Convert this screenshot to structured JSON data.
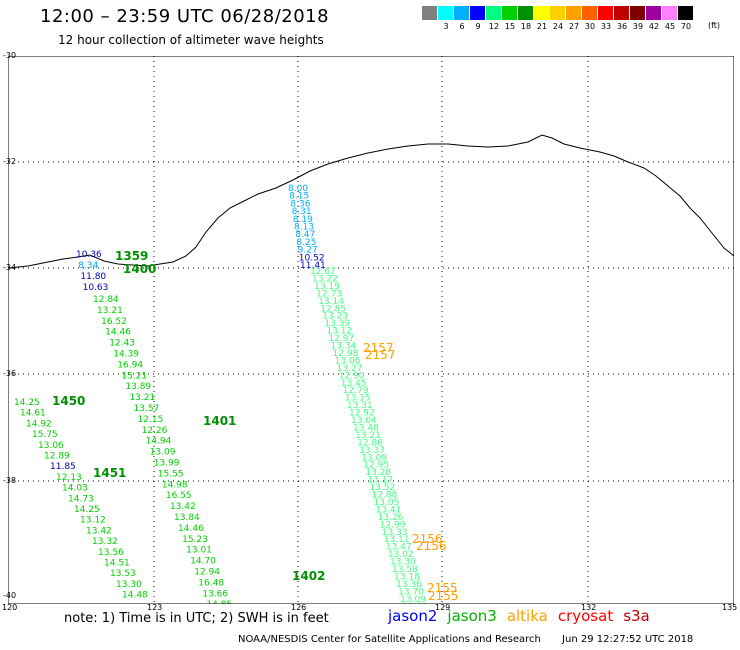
{
  "header": {
    "title": "12:00 – 23:59 UTC 06/28/2018",
    "subtitle": "12 hour collection of altimeter wave heights"
  },
  "legend": {
    "unit": "(ft)",
    "bins": [
      {
        "label": "",
        "color": "#808080"
      },
      {
        "label": "3",
        "color": "#00ffff"
      },
      {
        "label": "6",
        "color": "#00b0ff"
      },
      {
        "label": "9",
        "color": "#0000ff"
      },
      {
        "label": "12",
        "color": "#00ff80"
      },
      {
        "label": "15",
        "color": "#00d000"
      },
      {
        "label": "18",
        "color": "#009000"
      },
      {
        "label": "21",
        "color": "#ffff00"
      },
      {
        "label": "24",
        "color": "#ffd000"
      },
      {
        "label": "27",
        "color": "#ffa000"
      },
      {
        "label": "30",
        "color": "#ff6000"
      },
      {
        "label": "33",
        "color": "#ff0000"
      },
      {
        "label": "36",
        "color": "#c00000"
      },
      {
        "label": "39",
        "color": "#800000"
      },
      {
        "label": "42",
        "color": "#a000a0"
      },
      {
        "label": "45",
        "color": "#ff80ff"
      },
      {
        "label": "70",
        "color": "#000000"
      }
    ]
  },
  "map": {
    "lat_labels": [
      "-30",
      "-32",
      "-34",
      "-36",
      "-38",
      "-40"
    ],
    "lon_labels": [
      "120",
      "123",
      "126",
      "129",
      "132",
      "135"
    ]
  },
  "tracks": [
    {
      "id": "t1359",
      "mission": "jason2",
      "time": "1359",
      "time_color": "#009000",
      "values": [
        {
          "v": "10.36",
          "c": "#0000c0"
        },
        {
          "v": "8.34",
          "c": "#00a0ff"
        },
        {
          "v": "11.80",
          "c": "#0000c0"
        },
        {
          "v": "10.63",
          "c": "#0000c0"
        }
      ]
    },
    {
      "id": "t1400",
      "mission": "jason3",
      "time": "1400",
      "time_color": "#009000",
      "values": [
        {
          "v": "12.84",
          "c": "#00d000"
        },
        {
          "v": "13.21",
          "c": "#00d000"
        },
        {
          "v": "16.52",
          "c": "#00d000"
        },
        {
          "v": "14.46",
          "c": "#00d000"
        },
        {
          "v": "12.43",
          "c": "#00d000"
        },
        {
          "v": "14.39",
          "c": "#00d000"
        },
        {
          "v": "16.94",
          "c": "#00d000"
        },
        {
          "v": "15.21",
          "c": "#00d000"
        },
        {
          "v": "13.89",
          "c": "#00d000"
        },
        {
          "v": "13.21",
          "c": "#00d000"
        },
        {
          "v": "13.57",
          "c": "#00d000"
        },
        {
          "v": "12.15",
          "c": "#00d000"
        },
        {
          "v": "12.26",
          "c": "#00d000"
        },
        {
          "v": "14.94",
          "c": "#00d000"
        },
        {
          "v": "13.09",
          "c": "#00d000"
        },
        {
          "v": "13.99",
          "c": "#00d000"
        },
        {
          "v": "15.55",
          "c": "#00d000"
        },
        {
          "v": "14.98",
          "c": "#00d000"
        },
        {
          "v": "16.55",
          "c": "#00d000"
        },
        {
          "v": "13.42",
          "c": "#00d000"
        },
        {
          "v": "13.84",
          "c": "#00d000"
        },
        {
          "v": "14.46",
          "c": "#00d000"
        },
        {
          "v": "15.23",
          "c": "#00d000"
        },
        {
          "v": "13.01",
          "c": "#00d000"
        },
        {
          "v": "14.70",
          "c": "#00d000"
        },
        {
          "v": "12.94",
          "c": "#00d000"
        },
        {
          "v": "16.48",
          "c": "#00d000"
        },
        {
          "v": "13.66",
          "c": "#00d000"
        },
        {
          "v": "14.85",
          "c": "#00d000"
        },
        {
          "v": "15.51",
          "c": "#00d000"
        }
      ]
    },
    {
      "id": "t1450",
      "mission": "jason3",
      "time": "1450",
      "time_color": "#009000",
      "values": [
        {
          "v": "14.25",
          "c": "#00d000"
        },
        {
          "v": "14.61",
          "c": "#00d000"
        },
        {
          "v": "14.92",
          "c": "#00d000"
        },
        {
          "v": "15.75",
          "c": "#00d000"
        },
        {
          "v": "13.06",
          "c": "#00d000"
        },
        {
          "v": "12.89",
          "c": "#00d000"
        },
        {
          "v": "11.85",
          "c": "#0000c0"
        },
        {
          "v": "12.13",
          "c": "#00d000"
        },
        {
          "v": "14.03",
          "c": "#00d000"
        },
        {
          "v": "14.73",
          "c": "#00d000"
        },
        {
          "v": "14.25",
          "c": "#00d000"
        },
        {
          "v": "13.12",
          "c": "#00d000"
        },
        {
          "v": "13.42",
          "c": "#00d000"
        },
        {
          "v": "13.32",
          "c": "#00d000"
        },
        {
          "v": "13.56",
          "c": "#00d000"
        },
        {
          "v": "14.51",
          "c": "#00d000"
        },
        {
          "v": "13.53",
          "c": "#00d000"
        },
        {
          "v": "13.30",
          "c": "#00d000"
        },
        {
          "v": "14.48",
          "c": "#00d000"
        }
      ]
    },
    {
      "id": "t1401",
      "mission": "jason3",
      "time": "1401",
      "time_color": "#009000",
      "values": []
    },
    {
      "id": "t1451",
      "mission": "jason3",
      "time": "1451",
      "time_color": "#009000",
      "values": []
    },
    {
      "id": "t1402",
      "mission": "jason3",
      "time": "1402",
      "time_color": "#009000",
      "values": []
    },
    {
      "id": "t_east_blue",
      "mission": "jason2",
      "time": "",
      "time_color": "#009000",
      "values": [
        {
          "v": "8.00",
          "c": "#00b0ff"
        },
        {
          "v": "8.15",
          "c": "#00b0ff"
        },
        {
          "v": "8.36",
          "c": "#00b0ff"
        },
        {
          "v": "8.31",
          "c": "#00b0ff"
        },
        {
          "v": "8.19",
          "c": "#00b0ff"
        },
        {
          "v": "8.13",
          "c": "#00b0ff"
        },
        {
          "v": "8.47",
          "c": "#00b0ff"
        },
        {
          "v": "8.25",
          "c": "#00b0ff"
        },
        {
          "v": "9.27",
          "c": "#00b0ff"
        },
        {
          "v": "10.52",
          "c": "#0000c0"
        },
        {
          "v": "11.41",
          "c": "#0000c0"
        }
      ]
    },
    {
      "id": "t_east_green",
      "mission": "jason3",
      "time": "",
      "time_color": "#009000",
      "values": [
        {
          "v": "12.67",
          "c": "#40ff80"
        },
        {
          "v": "13.22",
          "c": "#40ff80"
        },
        {
          "v": "13.19",
          "c": "#40ff80"
        },
        {
          "v": "12.73",
          "c": "#40ff80"
        },
        {
          "v": "13.14",
          "c": "#40ff80"
        },
        {
          "v": "12.85",
          "c": "#40ff80"
        },
        {
          "v": "13.23",
          "c": "#40ff80"
        },
        {
          "v": "13.39",
          "c": "#40ff80"
        },
        {
          "v": "13.12",
          "c": "#40ff80"
        },
        {
          "v": "12.97",
          "c": "#40ff80"
        },
        {
          "v": "13.34",
          "c": "#40ff80"
        },
        {
          "v": "12.98",
          "c": "#40ff80"
        },
        {
          "v": "13.06",
          "c": "#40ff80"
        },
        {
          "v": "13.27",
          "c": "#40ff80"
        },
        {
          "v": "12.90",
          "c": "#40ff80"
        },
        {
          "v": "13.45",
          "c": "#40ff80"
        },
        {
          "v": "12.79",
          "c": "#40ff80"
        },
        {
          "v": "13.15",
          "c": "#40ff80"
        },
        {
          "v": "13.31",
          "c": "#40ff80"
        },
        {
          "v": "12.92",
          "c": "#40ff80"
        },
        {
          "v": "13.04",
          "c": "#40ff80"
        },
        {
          "v": "13.48",
          "c": "#40ff80"
        },
        {
          "v": "13.21",
          "c": "#40ff80"
        },
        {
          "v": "12.86",
          "c": "#40ff80"
        },
        {
          "v": "13.37",
          "c": "#40ff80"
        },
        {
          "v": "13.09",
          "c": "#40ff80"
        },
        {
          "v": "12.95",
          "c": "#40ff80"
        },
        {
          "v": "13.28",
          "c": "#40ff80"
        },
        {
          "v": "13.17",
          "c": "#40ff80"
        },
        {
          "v": "13.52",
          "c": "#40ff80"
        },
        {
          "v": "12.88",
          "c": "#40ff80"
        },
        {
          "v": "13.05",
          "c": "#40ff80"
        },
        {
          "v": "13.41",
          "c": "#40ff80"
        },
        {
          "v": "13.26",
          "c": "#40ff80"
        },
        {
          "v": "12.99",
          "c": "#40ff80"
        },
        {
          "v": "13.33",
          "c": "#40ff80"
        },
        {
          "v": "13.11",
          "c": "#40ff80"
        },
        {
          "v": "13.47",
          "c": "#40ff80"
        },
        {
          "v": "13.02",
          "c": "#40ff80"
        },
        {
          "v": "13.30",
          "c": "#40ff80"
        },
        {
          "v": "13.58",
          "c": "#40ff80"
        },
        {
          "v": "13.18",
          "c": "#40ff80"
        },
        {
          "v": "13.36",
          "c": "#40ff80"
        },
        {
          "v": "13.70",
          "c": "#40ff80"
        },
        {
          "v": "13.09",
          "c": "#40ff80"
        },
        {
          "v": "13.93",
          "c": "#40ff80"
        }
      ]
    }
  ],
  "altika_labels": [
    {
      "text": "2157",
      "color": "#ffa000"
    },
    {
      "text": "2157",
      "color": "#ffa000"
    },
    {
      "text": "2156",
      "color": "#ffa000"
    },
    {
      "text": "2156",
      "color": "#ffa000"
    },
    {
      "text": "2155",
      "color": "#ffa000"
    },
    {
      "text": "2155",
      "color": "#ffa000"
    }
  ],
  "note": "note:  1) Time is in UTC;  2) SWH is in feet",
  "missions": [
    {
      "name": "jason2",
      "color": "#0000ff"
    },
    {
      "name": "jason3",
      "color": "#00b000"
    },
    {
      "name": "altika",
      "color": "#ffa000"
    },
    {
      "name": "cryosat",
      "color": "#ff0000"
    },
    {
      "name": "s3a",
      "color": "#c00000"
    }
  ],
  "footer": {
    "left": "NOAA/NESDIS Center for Satellite Applications and Research",
    "right": "Jun 29 12:27:52 UTC 2018"
  }
}
